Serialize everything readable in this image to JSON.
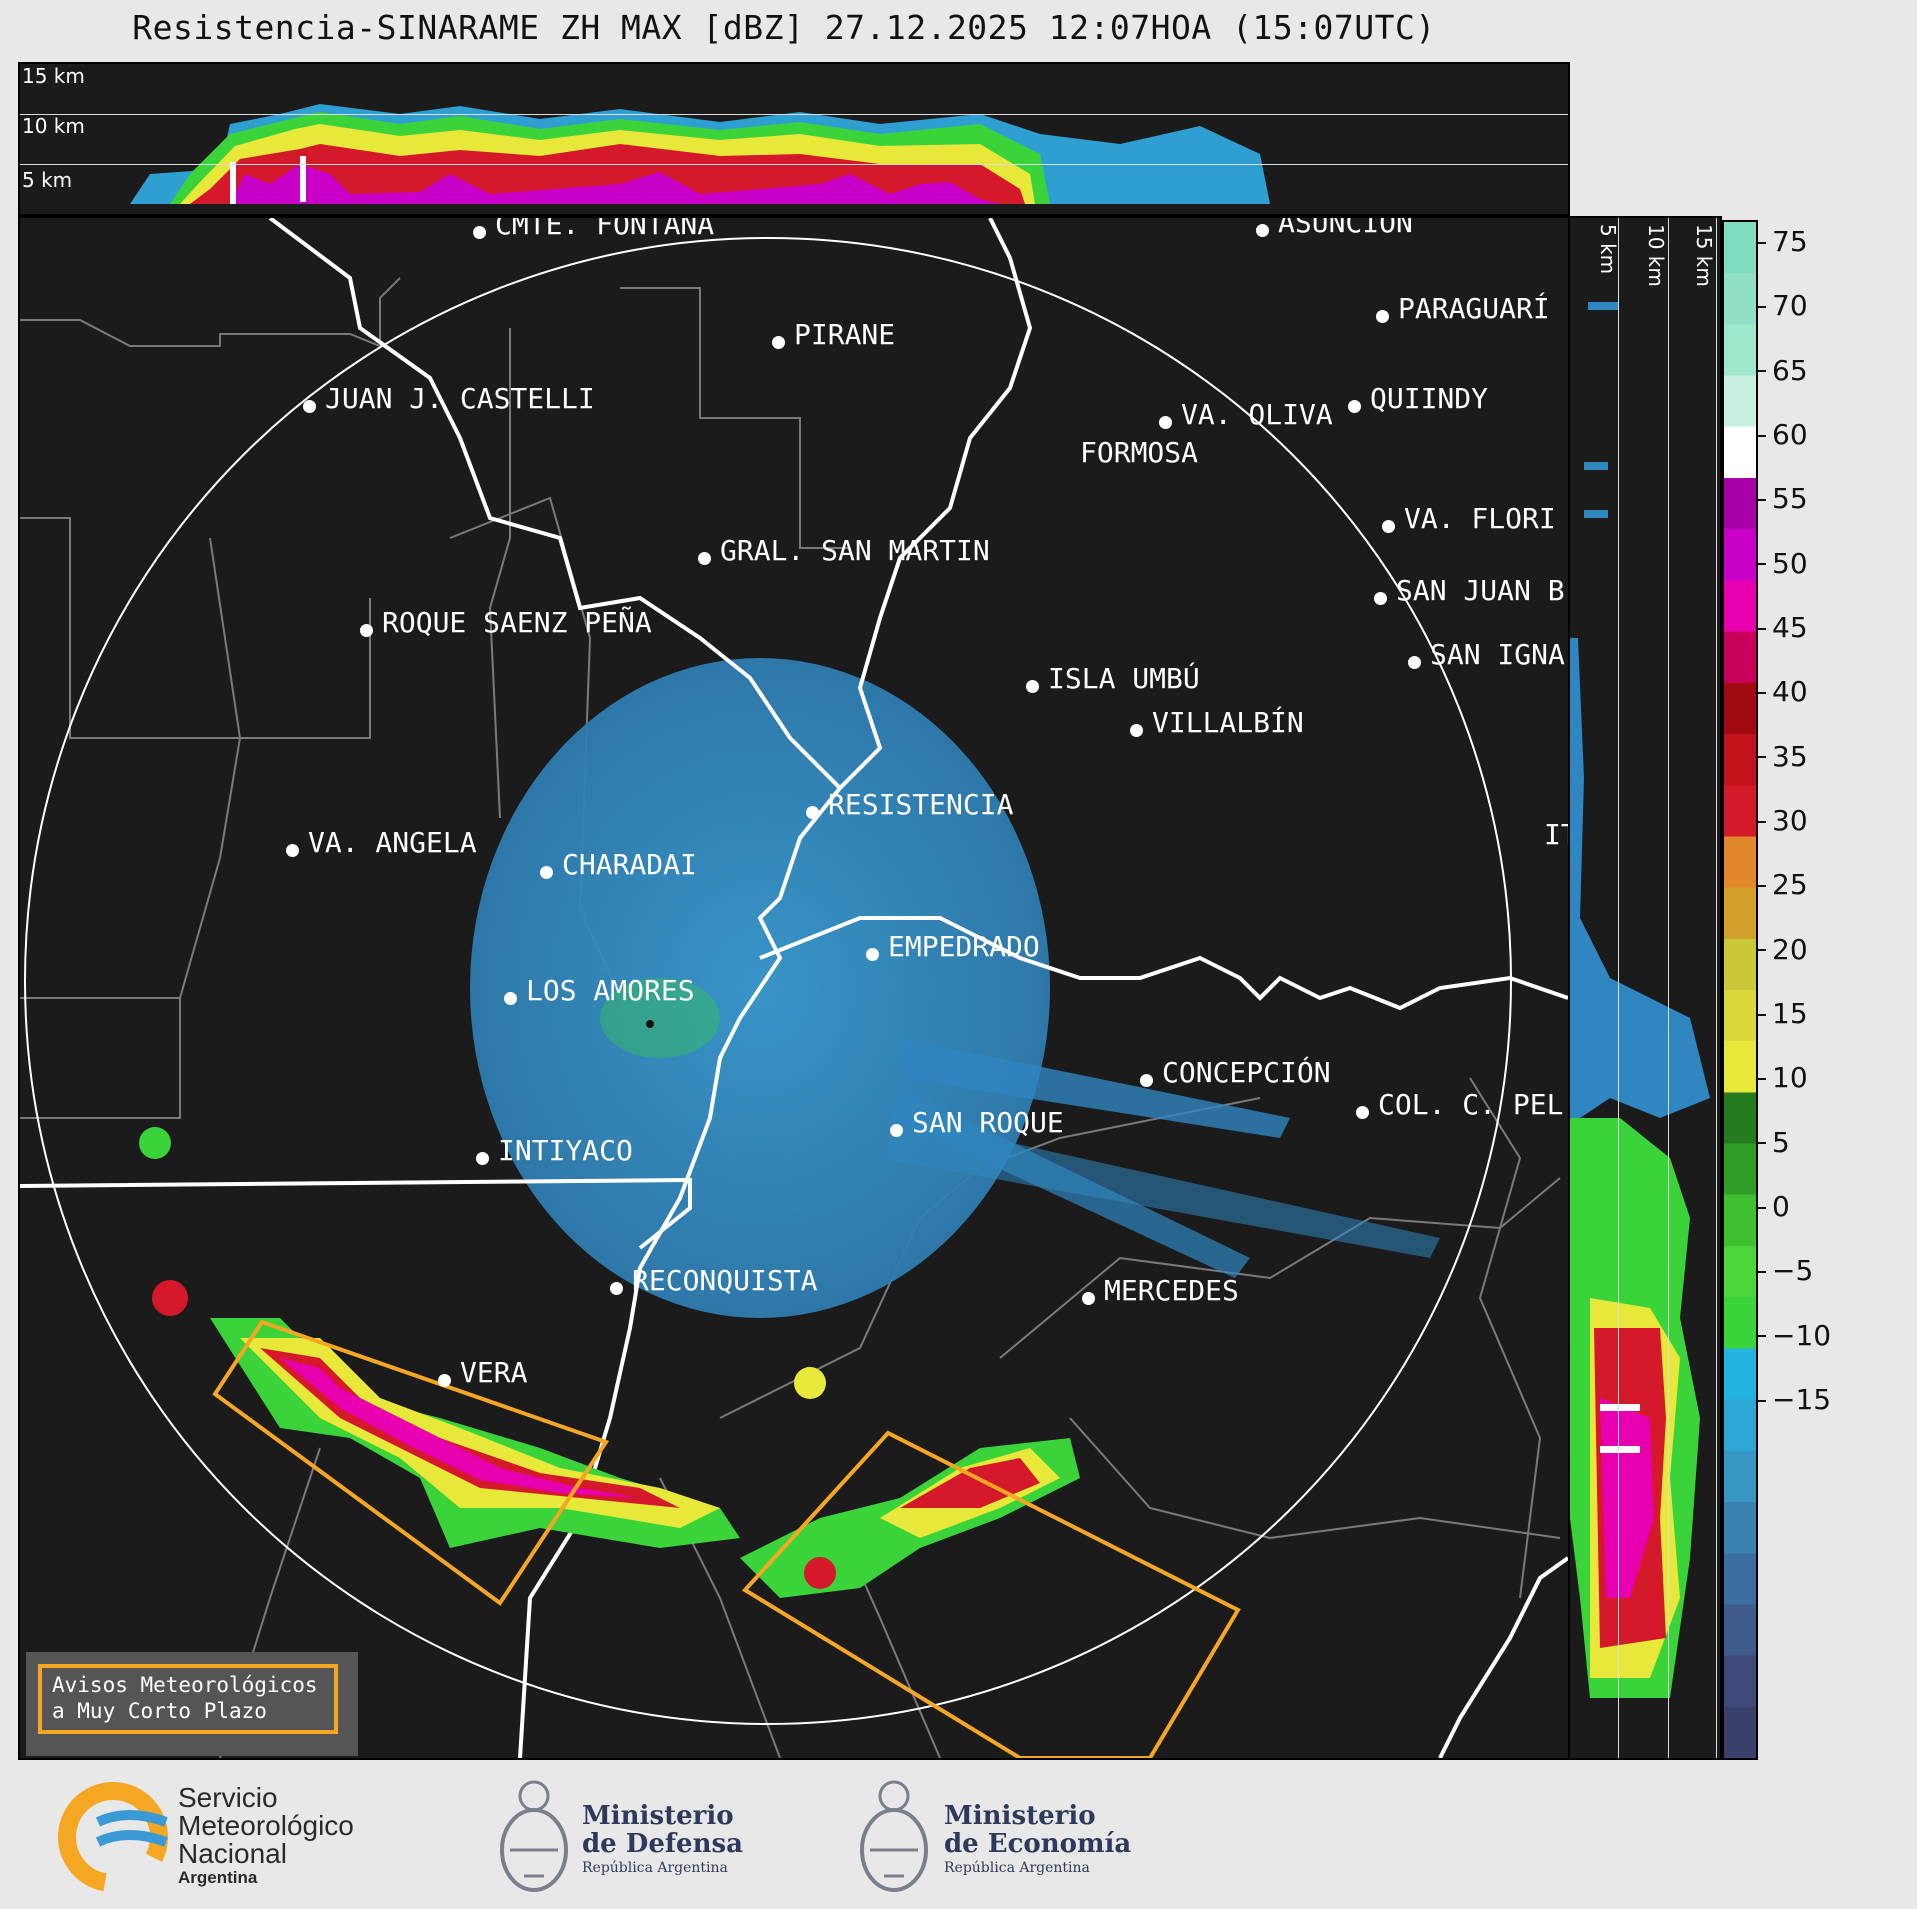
{
  "title": "Resistencia-SINARAME ZH MAX [dBZ] 27.12.2025 12:07HOA (15:07UTC)",
  "top_profile": {
    "height_labels": [
      "15 km",
      "10 km",
      "5 km"
    ]
  },
  "side_profile": {
    "height_labels": [
      "5 km",
      "10 km",
      "15 km"
    ]
  },
  "colorbar": {
    "ticks": [
      "75",
      "70",
      "65",
      "60",
      "55",
      "50",
      "45",
      "40",
      "35",
      "30",
      "25",
      "20",
      "15",
      "10",
      "5",
      "0",
      "−5",
      "−10",
      "−15"
    ],
    "colors": [
      "#3b3f6b",
      "#3f4a7a",
      "#3f5b8c",
      "#3d6ea0",
      "#3a82b0",
      "#3696c4",
      "#2ea6d6",
      "#23b3e0",
      "#3ad43a",
      "#4cd63a",
      "#3fc030",
      "#2f9c25",
      "#237a1f",
      "#e8e83a",
      "#d8d83a",
      "#c8c83a",
      "#d4a12a",
      "#e0882a",
      "#d41a2a",
      "#c2121a",
      "#a00a10",
      "#c8005a",
      "#e800b0",
      "#c800c8",
      "#a800a8",
      "#ffffff",
      "#c8f0e0",
      "#a0e8cc",
      "#90e0c8",
      "#80dcc0"
    ]
  },
  "cities": [
    {
      "name": "CMTE. FONTANA"
    },
    {
      "name": "ASUNCIÓN"
    },
    {
      "name": "PARAGUARÍ"
    },
    {
      "name": "PIRANE"
    },
    {
      "name": "JUAN J. CASTELLI"
    },
    {
      "name": "VA. OLIVA"
    },
    {
      "name": "QUIINDY"
    },
    {
      "name": "FORMOSA"
    },
    {
      "name": "VA. FLORI"
    },
    {
      "name": "GRAL. SAN MARTIN"
    },
    {
      "name": "SAN JUAN B"
    },
    {
      "name": "ROQUE SAENZ PEÑA"
    },
    {
      "name": "SAN IGNA"
    },
    {
      "name": "ISLA UMBÚ"
    },
    {
      "name": "VILLALBÍN"
    },
    {
      "name": "RESISTENCIA"
    },
    {
      "name": "VA. ANGELA"
    },
    {
      "name": "IT"
    },
    {
      "name": "CHARADAI"
    },
    {
      "name": "EMPEDRADO"
    },
    {
      "name": "LOS AMORES"
    },
    {
      "name": "CONCEPCIÓN"
    },
    {
      "name": "SAN ROQUE"
    },
    {
      "name": "COL. C. PEL"
    },
    {
      "name": "INTIYACO"
    },
    {
      "name": "RECONQUISTA"
    },
    {
      "name": "MERCEDES"
    },
    {
      "name": "VERA"
    }
  ],
  "warning_legend": {
    "line1": "Avisos Meteorológicos",
    "line2": "a Muy Corto Plazo"
  },
  "logos": {
    "smn": {
      "line1": "Servicio",
      "line2": "Meteorológico",
      "line3": "Nacional",
      "line4": "Argentina"
    },
    "defensa": {
      "line1": "Ministerio",
      "line2": "de Defensa",
      "line3": "República Argentina"
    },
    "economia": {
      "line1": "Ministerio",
      "line2": "de Economía",
      "line3": "República Argentina"
    }
  }
}
